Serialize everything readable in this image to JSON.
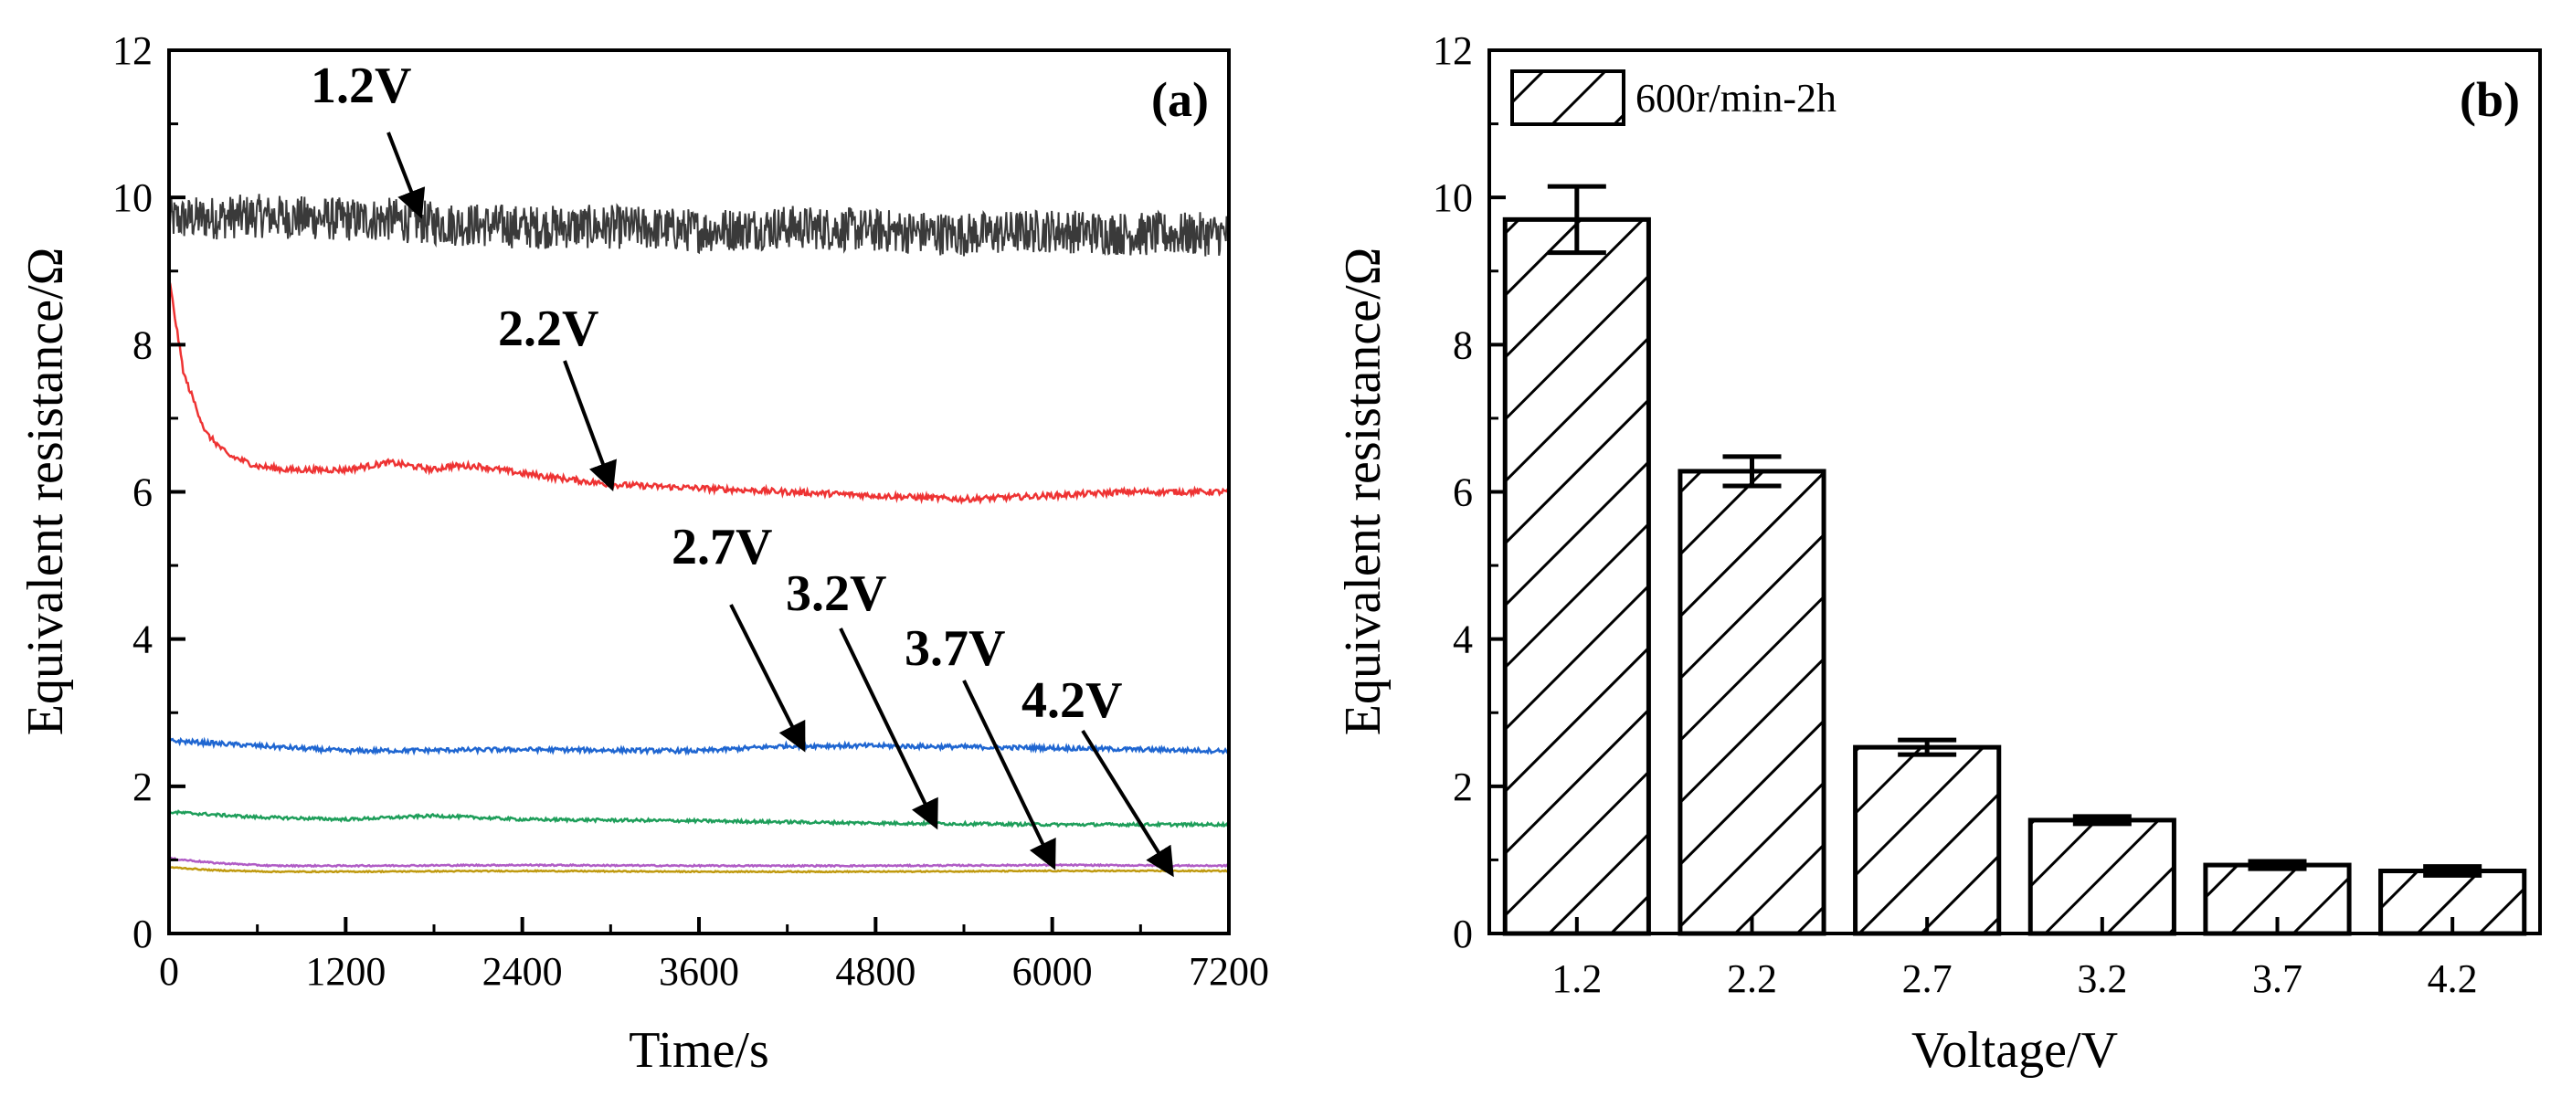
{
  "figure": {
    "colors": {
      "v1_2": "#3a3a3a",
      "v2_2": "#ee3333",
      "v2_7": "#1f66d1",
      "v3_2": "#1e9e5a",
      "v3_7": "#b05cc6",
      "v4_2": "#c09a10",
      "bar_edge": "#000000",
      "bar_hatch": "#000000"
    }
  },
  "chart_data": [
    {
      "id": "a",
      "type": "line",
      "panel_label": "(a)",
      "xlabel": "Time/s",
      "ylabel": "Equivalent resistance/Ω",
      "xlim": [
        0,
        7200
      ],
      "ylim": [
        0,
        12
      ],
      "xticks": [
        "0",
        "1200",
        "2400",
        "3600",
        "4800",
        "6000",
        "7200"
      ],
      "yticks": [
        "0",
        "2",
        "4",
        "6",
        "8",
        "10",
        "12"
      ],
      "series": [
        {
          "name": "1.2V",
          "x": [
            0,
            600,
            1200,
            1500,
            1800,
            2400,
            3000,
            3600,
            4200,
            4800,
            5400,
            6000,
            6600,
            7200
          ],
          "values": [
            9.7,
            9.75,
            9.7,
            9.7,
            9.65,
            9.6,
            9.6,
            9.55,
            9.6,
            9.55,
            9.5,
            9.55,
            9.5,
            9.5
          ],
          "noise": 0.3
        },
        {
          "name": "2.2V",
          "x": [
            0,
            100,
            250,
            400,
            600,
            800,
            1200,
            1500,
            1800,
            1900,
            2100,
            2400,
            3000,
            3600,
            4200,
            4800,
            5400,
            6000,
            6500,
            7200
          ],
          "values": [
            8.9,
            7.6,
            6.8,
            6.5,
            6.35,
            6.3,
            6.3,
            6.4,
            6.3,
            6.35,
            6.35,
            6.25,
            6.1,
            6.05,
            6.0,
            5.95,
            5.9,
            5.95,
            6.0,
            6.0
          ],
          "noise": 0.04
        },
        {
          "name": "2.7V",
          "x": [
            0,
            600,
            1200,
            2400,
            3600,
            4200,
            4800,
            6000,
            7200
          ],
          "values": [
            2.62,
            2.55,
            2.48,
            2.5,
            2.48,
            2.55,
            2.55,
            2.52,
            2.48
          ],
          "noise": 0.03
        },
        {
          "name": "3.2V",
          "x": [
            0,
            600,
            1200,
            1800,
            2400,
            3600,
            4800,
            6000,
            7200
          ],
          "values": [
            1.65,
            1.58,
            1.55,
            1.6,
            1.55,
            1.53,
            1.5,
            1.48,
            1.48
          ],
          "noise": 0.02
        },
        {
          "name": "3.7V",
          "x": [
            0,
            300,
            700,
            1200,
            2400,
            3600,
            4800,
            6000,
            7200
          ],
          "values": [
            1.02,
            0.96,
            0.92,
            0.92,
            0.93,
            0.92,
            0.92,
            0.93,
            0.92
          ],
          "noise": 0.01
        },
        {
          "name": "4.2V",
          "x": [
            0,
            300,
            700,
            1200,
            2400,
            3600,
            4800,
            6000,
            7200
          ],
          "values": [
            0.9,
            0.86,
            0.84,
            0.84,
            0.85,
            0.84,
            0.84,
            0.85,
            0.85
          ],
          "noise": 0.008
        }
      ],
      "annotations": [
        {
          "text": "1.2V",
          "arrow_to": [
            1700,
            9.8
          ]
        },
        {
          "text": "2.2V",
          "arrow_to": [
            3000,
            6.1
          ]
        },
        {
          "text": "2.7V",
          "arrow_to": [
            4300,
            2.55
          ]
        },
        {
          "text": "3.2V",
          "arrow_to": [
            5200,
            1.5
          ]
        },
        {
          "text": "3.7V",
          "arrow_to": [
            6000,
            0.95
          ]
        },
        {
          "text": "4.2V",
          "arrow_to": [
            6800,
            0.85
          ]
        }
      ]
    },
    {
      "id": "b",
      "type": "bar",
      "panel_label": "(b)",
      "xlabel": "Voltage/V",
      "ylabel": "Equivalent resistance/Ω",
      "ylim": [
        0,
        12
      ],
      "yticks": [
        "0",
        "2",
        "4",
        "6",
        "8",
        "10",
        "12"
      ],
      "categories": [
        "1.2",
        "2.2",
        "2.7",
        "3.2",
        "3.7",
        "4.2"
      ],
      "series": [
        {
          "name": "600r/min-2h",
          "values": [
            9.7,
            6.28,
            2.53,
            1.54,
            0.93,
            0.85
          ],
          "errors": [
            0.45,
            0.2,
            0.1,
            0.05,
            0.05,
            0.06
          ]
        }
      ],
      "legend_position": "top-left"
    }
  ]
}
